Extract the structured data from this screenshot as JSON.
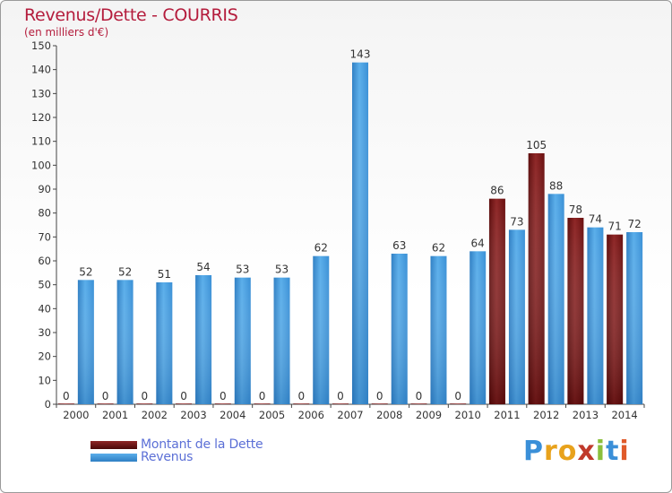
{
  "colors": {
    "dette": "#7a1414",
    "revenus": "#3f98de",
    "title": "#b41c3c",
    "legend_text": "#5b6fd6"
  },
  "logo": {
    "text": "Proxiti"
  },
  "chart_data": {
    "type": "bar",
    "title": "Revenus/Dette - COURRIS",
    "subtitle": "(en milliers d'€)",
    "xlabel": "",
    "ylabel": "",
    "ylim": [
      0,
      150
    ],
    "yticks": [
      0,
      10,
      20,
      30,
      40,
      50,
      60,
      70,
      80,
      90,
      100,
      110,
      120,
      130,
      140,
      150
    ],
    "categories": [
      "2000",
      "2001",
      "2002",
      "2003",
      "2004",
      "2005",
      "2006",
      "2007",
      "2008",
      "2009",
      "2010",
      "2011",
      "2012",
      "2013",
      "2014"
    ],
    "series": [
      {
        "name": "Montant de la Dette",
        "values": [
          0,
          0,
          0,
          0,
          0,
          0,
          0,
          0,
          0,
          0,
          0,
          86,
          105,
          78,
          71
        ]
      },
      {
        "name": "Revenus",
        "values": [
          52,
          52,
          51,
          54,
          53,
          53,
          62,
          143,
          63,
          62,
          64,
          73,
          88,
          74,
          72
        ]
      }
    ],
    "legend": "bottom-left",
    "grid": false
  }
}
